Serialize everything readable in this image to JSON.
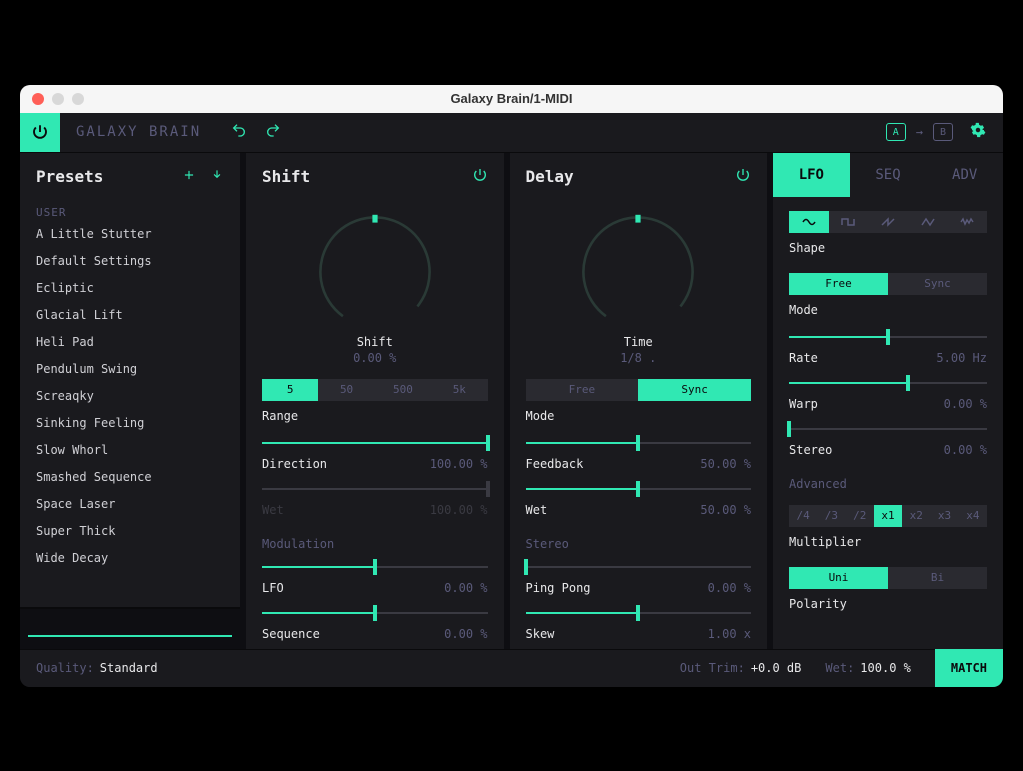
{
  "window": {
    "title": "Galaxy Brain/1-MIDI"
  },
  "topbar": {
    "app_name": "GALAXY BRAIN",
    "compare": {
      "a": "A",
      "arrow": "→",
      "b": "B"
    }
  },
  "colors": {
    "accent": "#30e8b3",
    "bg_dark": "#0e0e12",
    "bg_panel": "#1a1a1e",
    "bg_seg": "#2a2a30",
    "text": "#e8e8ea",
    "text_dim": "#5a5a7a",
    "text_disabled": "#3a3a42"
  },
  "presets": {
    "title": "Presets",
    "category": "USER",
    "items": [
      "A Little Stutter",
      "Default Settings",
      "Ecliptic",
      "Glacial Lift",
      "Heli Pad",
      "Pendulum Swing",
      "Screaqky",
      "Sinking Feeling",
      "Slow Whorl",
      "Smashed Sequence",
      "Space Laser",
      "Super Thick",
      "Wide Decay"
    ]
  },
  "shift": {
    "title": "Shift",
    "knob": {
      "label": "Shift",
      "value": "0.00 %",
      "pct": 50
    },
    "range": {
      "label": "Range",
      "options": [
        "5",
        "50",
        "500",
        "5k"
      ],
      "active": 0
    },
    "direction": {
      "label": "Direction",
      "value": "100.00 %",
      "pct": 100
    },
    "wet": {
      "label": "Wet",
      "value": "100.00 %",
      "pct": 100,
      "dimmed": true
    },
    "mod_title": "Modulation",
    "lfo": {
      "label": "LFO",
      "value": "0.00 %",
      "pct": 50
    },
    "sequence": {
      "label": "Sequence",
      "value": "0.00 %",
      "pct": 50
    }
  },
  "delay": {
    "title": "Delay",
    "knob": {
      "label": "Time",
      "value": "1/8 .",
      "pct": 50
    },
    "mode": {
      "label": "Mode",
      "options": [
        "Free",
        "Sync"
      ],
      "active": 1
    },
    "feedback": {
      "label": "Feedback",
      "value": "50.00 %",
      "pct": 50
    },
    "wet": {
      "label": "Wet",
      "value": "50.00 %",
      "pct": 50
    },
    "stereo_title": "Stereo",
    "pingpong": {
      "label": "Ping Pong",
      "value": "0.00 %",
      "pct": 0
    },
    "skew": {
      "label": "Skew",
      "value": "1.00 x",
      "pct": 50
    }
  },
  "right": {
    "tabs": [
      "LFO",
      "SEQ",
      "ADV"
    ],
    "active_tab": 0,
    "shape": {
      "label": "Shape",
      "active": 0
    },
    "mode": {
      "label": "Mode",
      "options": [
        "Free",
        "Sync"
      ],
      "active": 0
    },
    "rate": {
      "label": "Rate",
      "value": "5.00 Hz",
      "pct": 50
    },
    "warp": {
      "label": "Warp",
      "value": "0.00 %",
      "pct": 60
    },
    "stereo": {
      "label": "Stereo",
      "value": "0.00 %",
      "pct": 0
    },
    "adv_title": "Advanced",
    "mult": {
      "label": "Multiplier",
      "options": [
        "/4",
        "/3",
        "/2",
        "x1",
        "x2",
        "x3",
        "x4"
      ],
      "active": 3
    },
    "polarity": {
      "label": "Polarity",
      "options": [
        "Uni",
        "Bi"
      ],
      "active": 0
    }
  },
  "footer": {
    "quality_label": "Quality:",
    "quality_value": "Standard",
    "out_trim_label": "Out Trim:",
    "out_trim_value": "+0.0 dB",
    "wet_label": "Wet:",
    "wet_value": "100.0 %",
    "match": "MATCH"
  }
}
